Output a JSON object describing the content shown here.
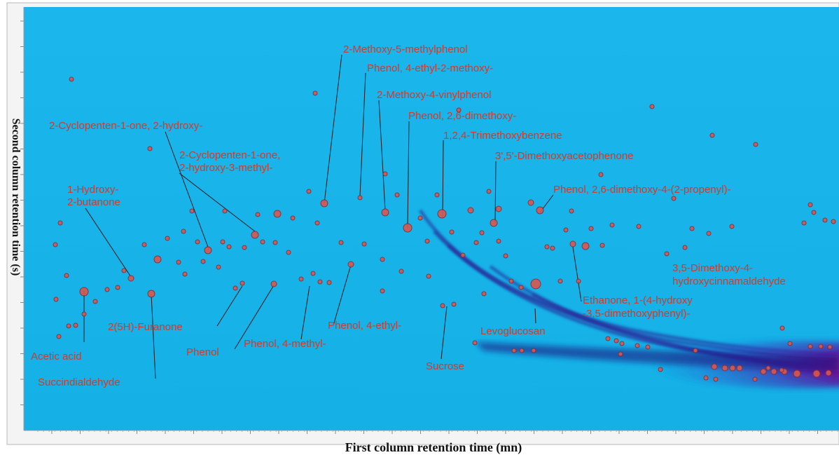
{
  "chart_data": {
    "type": "scatter",
    "title": "",
    "xlabel": "First column retention time (mn)",
    "ylabel": "Second column retention time (s)",
    "legend": "none",
    "grid": false,
    "colors": {
      "background": "#18b4ea",
      "peak_marker": "#d8584f",
      "peak_stroke": "#8a2a36",
      "label_text": "#d23a2a",
      "leader_line": "#1a1a1a",
      "streak_core": "#1c0a6e",
      "hot_zone": "#d0146e"
    },
    "annotations": [
      "2-Methoxy-5-methylphenol",
      "Phenol, 4-ethyl-2-methoxy-",
      "2-Methoxy-4-vinylphenol",
      "Phenol, 2,6-dimethoxy-",
      "1,2,4-Trimethoxybenzene",
      "3',5'-Dimethoxyacetophenone",
      "Phenol, 2,6-dimethoxy-4-(2-propenyl)-",
      "2-Cyclopenten-1-one, 2-hydroxy-",
      "2-Cyclopenten-1-one,",
      "2-hydroxy-3-methyl-",
      "1-Hydroxy-",
      "2-butanone",
      "3,5-Dimethoxy-4-",
      "hydroxycinnamaldehyde",
      "Ethanone, 1-(4-hydroxy",
      "-3,5-dimethoxyphenyl)-",
      "Levoglucosan",
      "2(5H)-Furanone",
      "Phenol",
      "Phenol, 4-methyl-",
      "Phenol, 4-ethyl-",
      "Sucrose",
      "Acetic acid",
      "Succindialdehyde"
    ]
  }
}
